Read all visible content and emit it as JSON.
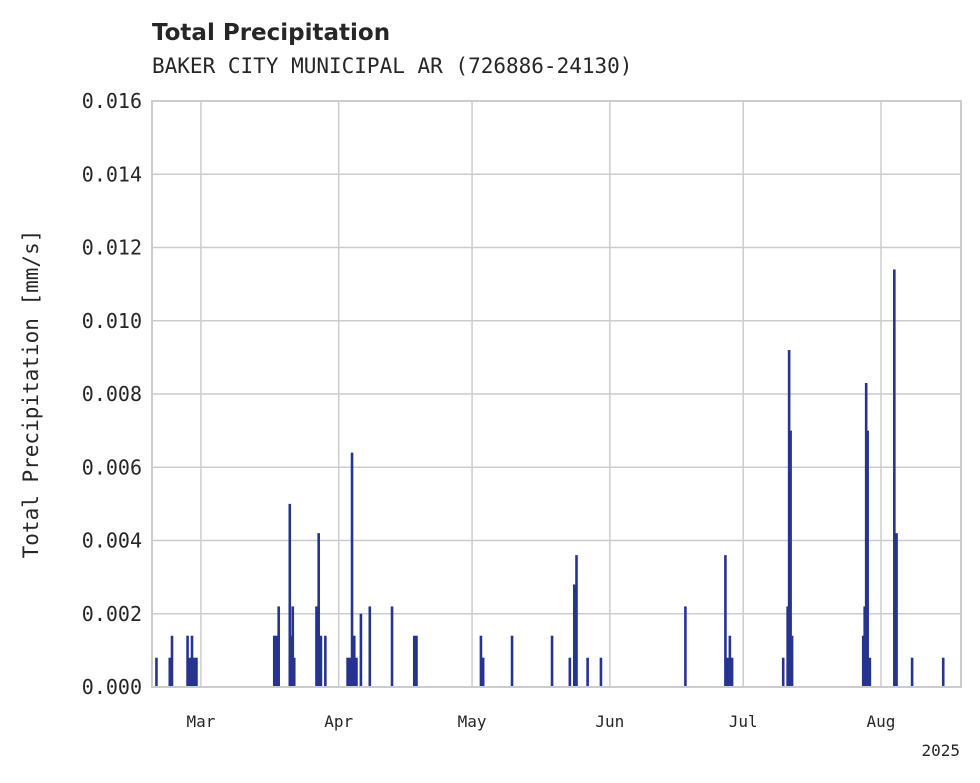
{
  "chart_data": {
    "type": "bar",
    "title": "Total Precipitation",
    "subtitle": "BAKER CITY MUNICIPAL AR (726886-24130)",
    "xlabel": "",
    "ylabel": "Total Precipitation [mm/s]",
    "x_range": [
      "2025-02-18",
      "2025-08-19"
    ],
    "ylim": [
      0,
      0.016
    ],
    "y_ticks": [
      "0.000",
      "0.002",
      "0.004",
      "0.006",
      "0.008",
      "0.010",
      "0.012",
      "0.014",
      "0.016"
    ],
    "x_ticks": [
      {
        "date": "2025-03-01",
        "label": "Mar"
      },
      {
        "date": "2025-04-01",
        "label": "Apr"
      },
      {
        "date": "2025-05-01",
        "label": "May"
      },
      {
        "date": "2025-06-01",
        "label": "Jun"
      },
      {
        "date": "2025-07-01",
        "label": "Jul"
      },
      {
        "date": "2025-08-01",
        "label": "Aug"
      }
    ],
    "x_offset_label": "2025",
    "grid": true,
    "bar_color": "#27348f",
    "series": [
      {
        "points": [
          [
            "2025-02-19",
            0.0008
          ],
          [
            "2025-02-22",
            0.0008
          ],
          [
            "2025-02-22T12:00",
            0.0014
          ],
          [
            "2025-02-26",
            0.0014
          ],
          [
            "2025-02-26T12:00",
            0.0008
          ],
          [
            "2025-02-27",
            0.0014
          ],
          [
            "2025-02-27T12:00",
            0.0008
          ],
          [
            "2025-02-28",
            0.0008
          ],
          [
            "2025-03-17T12:00",
            0.0014
          ],
          [
            "2025-03-18",
            0.0014
          ],
          [
            "2025-03-18T12:00",
            0.0022
          ],
          [
            "2025-03-21",
            0.005
          ],
          [
            "2025-03-21T08:00",
            0.0014
          ],
          [
            "2025-03-21T16:00",
            0.0022
          ],
          [
            "2025-03-22",
            0.0008
          ],
          [
            "2025-03-27",
            0.0022
          ],
          [
            "2025-03-27T12:00",
            0.0042
          ],
          [
            "2025-03-28",
            0.0014
          ],
          [
            "2025-03-29",
            0.0014
          ],
          [
            "2025-04-03",
            0.0008
          ],
          [
            "2025-04-03T12:00",
            0.0008
          ],
          [
            "2025-04-04",
            0.0064
          ],
          [
            "2025-04-04T12:00",
            0.0014
          ],
          [
            "2025-04-05",
            0.0008
          ],
          [
            "2025-04-06",
            0.002
          ],
          [
            "2025-04-08",
            0.0022
          ],
          [
            "2025-04-13",
            0.0022
          ],
          [
            "2025-04-18",
            0.0014
          ],
          [
            "2025-04-18T12:00",
            0.0014
          ],
          [
            "2025-05-03",
            0.0014
          ],
          [
            "2025-05-03T12:00",
            0.0008
          ],
          [
            "2025-05-10",
            0.0014
          ],
          [
            "2025-05-19",
            0.0014
          ],
          [
            "2025-05-23",
            0.0008
          ],
          [
            "2025-05-24",
            0.0028
          ],
          [
            "2025-05-24T12:00",
            0.0036
          ],
          [
            "2025-05-27",
            0.0008
          ],
          [
            "2025-05-30",
            0.0008
          ],
          [
            "2025-06-18",
            0.0022
          ],
          [
            "2025-06-27",
            0.0036
          ],
          [
            "2025-06-27T12:00",
            0.0008
          ],
          [
            "2025-06-28",
            0.0014
          ],
          [
            "2025-06-28T12:00",
            0.0008
          ],
          [
            "2025-07-10",
            0.0008
          ],
          [
            "2025-07-11",
            0.0022
          ],
          [
            "2025-07-11T08:00",
            0.0092
          ],
          [
            "2025-07-11T16:00",
            0.007
          ],
          [
            "2025-07-12",
            0.0014
          ],
          [
            "2025-07-28",
            0.0014
          ],
          [
            "2025-07-28T08:00",
            0.0022
          ],
          [
            "2025-07-28T16:00",
            0.0083
          ],
          [
            "2025-07-29",
            0.007
          ],
          [
            "2025-07-29T12:00",
            0.0008
          ],
          [
            "2025-08-04",
            0.0114
          ],
          [
            "2025-08-04T12:00",
            0.0042
          ],
          [
            "2025-08-08",
            0.0008
          ],
          [
            "2025-08-15",
            0.0008
          ]
        ]
      }
    ]
  }
}
